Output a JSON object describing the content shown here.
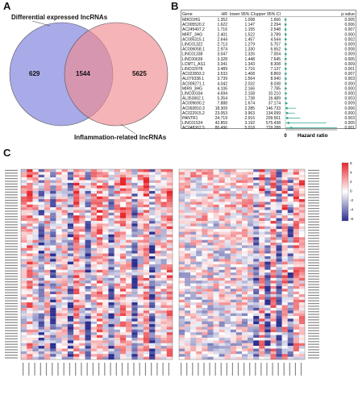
{
  "panels": {
    "a": "A",
    "b": "B",
    "c": "C"
  },
  "venn": {
    "left_title": "Differential expressed lncRNAs",
    "right_title": "Inflammation-related lncRNAs",
    "left_only": "629",
    "overlap": "1544",
    "right_only": "5625",
    "left_color": "#8c8ee0",
    "right_color": "#f08c92"
  },
  "forest": {
    "headers": [
      "Gene",
      "HR",
      "lower 95% CI",
      "upper 95% CI",
      "p.value"
    ],
    "rows": [
      [
        "MIR31HG",
        "1.352",
        "1.098",
        "1.666",
        "0.005"
      ],
      [
        "AC005520.2",
        "1.622",
        "1.147",
        "2.294",
        "0.006"
      ],
      [
        "AC245407.2",
        "1.716",
        "1.155",
        "2.548",
        "0.007"
      ],
      [
        "MIRT_3HG",
        "2.401",
        "1.522",
        "3.789",
        "0.000"
      ],
      [
        "AC005315.1",
        "2.644",
        "1.457",
        "4.544",
        "0.002"
      ],
      [
        "LINC01322",
        "2.713",
        "1.279",
        "5.757",
        "0.009"
      ],
      [
        "AC006058.1",
        "2.974",
        "1.330",
        "6.652",
        "0.008"
      ],
      [
        "LINC01338",
        "3.047",
        "1.326",
        "7.004",
        "0.009"
      ],
      [
        "LINC00639",
        "3.328",
        "1.448",
        "7.645",
        "0.005"
      ],
      [
        "LCMT1_AS1",
        "3.341",
        "1.343",
        "8.308",
        "0.009"
      ],
      [
        "LINC02078",
        "3.489",
        "1.716",
        "7.137",
        "0.001"
      ],
      [
        "AC022893.2",
        "3.533",
        "1.408",
        "8.869",
        "0.007"
      ],
      [
        "AL079338.1",
        "3.739",
        "1.564",
        "8.940",
        "0.003"
      ],
      [
        "AC009271.1",
        "4.042",
        "2.032",
        "8.038",
        "0.000"
      ],
      [
        "MIR9_3HG",
        "4.106",
        "2.166",
        "7.785",
        "0.000"
      ],
      [
        "LINC00334",
        "4.694",
        "2.158",
        "10.210",
        "0.000"
      ],
      [
        "AL353662.1",
        "5.354",
        "1.738",
        "16.489",
        "0.003"
      ],
      [
        "AC009690.2",
        "7.888",
        "1.674",
        "37.174",
        "0.009"
      ],
      [
        "AC092810.3",
        "18.309",
        "2.285",
        "146.733",
        "0.006"
      ],
      [
        "AC022915.2",
        "23.053",
        "3.963",
        "134.099",
        "0.000"
      ],
      [
        "PANTR1",
        "24.719",
        "2.916",
        "209.561",
        "0.003"
      ],
      [
        "LINC01524",
        "42.859",
        "3.192",
        "575.438",
        "0.005"
      ],
      [
        "AC048362.5",
        "80.496",
        "5.018",
        "729.288",
        "0.001"
      ]
    ],
    "axis_tick": "0",
    "axis_label": "Hazard ratio",
    "point_color": "#2ca58d"
  },
  "heatmap": {
    "low_color": "#2b2f8f",
    "mid_color": "#ffffff",
    "high_color": "#e8262c",
    "legend_ticks": [
      "6",
      "4",
      "2",
      "0",
      "-2",
      "-4",
      "-6"
    ]
  }
}
